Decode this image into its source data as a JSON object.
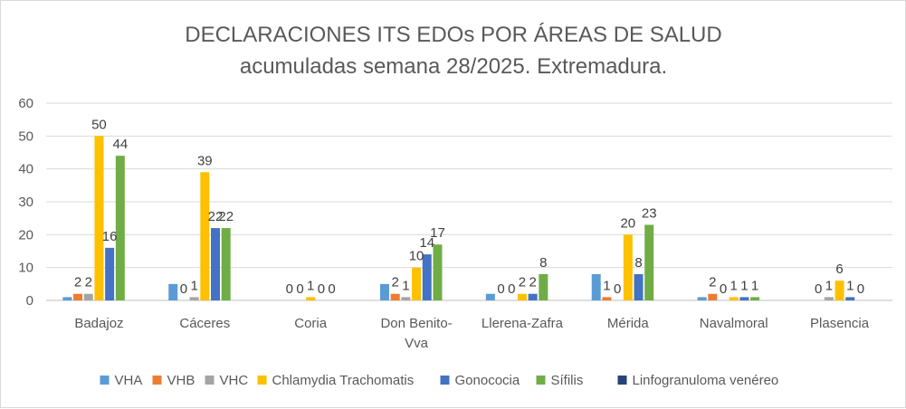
{
  "chart_data": {
    "type": "bar",
    "title": "DECLARACIONES ITS EDOs POR ÁREAS DE SALUD",
    "subtitle": "acumuladas semana 28/2025. Extremadura.",
    "xlabel": "",
    "ylabel": "",
    "ylim": [
      0,
      60
    ],
    "yticks": [
      0,
      10,
      20,
      30,
      40,
      50,
      60
    ],
    "grid": true,
    "legend_position": "bottom",
    "categories": [
      "Badajoz",
      "Cáceres",
      "Coria",
      "Don Benito-\nVva",
      "Llerena-Zafra",
      "Mérida",
      "Navalmoral",
      "Plasencia"
    ],
    "series": [
      {
        "name": "VHA",
        "color": "#5b9bd5",
        "values": [
          1,
          5,
          0,
          5,
          2,
          8,
          1,
          0
        ],
        "labels": [
          null,
          null,
          null,
          null,
          null,
          null,
          null,
          null
        ]
      },
      {
        "name": "VHB",
        "color": "#ed7d31",
        "values": [
          2,
          0,
          0,
          2,
          0,
          1,
          2,
          0
        ],
        "labels": [
          "2",
          "0",
          "0",
          "2",
          "0",
          "1",
          "2",
          "0"
        ]
      },
      {
        "name": "VHC",
        "color": "#a5a5a5",
        "values": [
          2,
          1,
          0,
          1,
          0,
          0,
          0,
          1
        ],
        "labels": [
          "2",
          "1",
          "0",
          "1",
          "0",
          "0",
          "0",
          "1"
        ]
      },
      {
        "name": "Chlamydia Trachomatis",
        "color": "#ffc000",
        "values": [
          50,
          39,
          1,
          10,
          2,
          20,
          1,
          6
        ],
        "labels": [
          "50",
          "39",
          "1",
          "10",
          "2",
          "20",
          "1",
          "6"
        ]
      },
      {
        "name": "Gonococia",
        "color": "#4472c4",
        "values": [
          16,
          22,
          0,
          14,
          2,
          8,
          1,
          1
        ],
        "labels": [
          "16",
          "22",
          "0",
          "14",
          "2",
          "8",
          "1",
          "1"
        ]
      },
      {
        "name": "Sífilis",
        "color": "#70ad47",
        "values": [
          44,
          22,
          0,
          17,
          8,
          23,
          1,
          0
        ],
        "labels": [
          "44",
          "22",
          "0",
          "17",
          "8",
          "23",
          "1",
          "0"
        ]
      },
      {
        "name": "Linfogranuloma venéreo",
        "color": "#264478",
        "values": [
          0,
          0,
          0,
          0,
          0,
          0,
          0,
          0
        ],
        "labels": [
          null,
          null,
          null,
          null,
          null,
          null,
          null,
          null
        ]
      }
    ]
  }
}
